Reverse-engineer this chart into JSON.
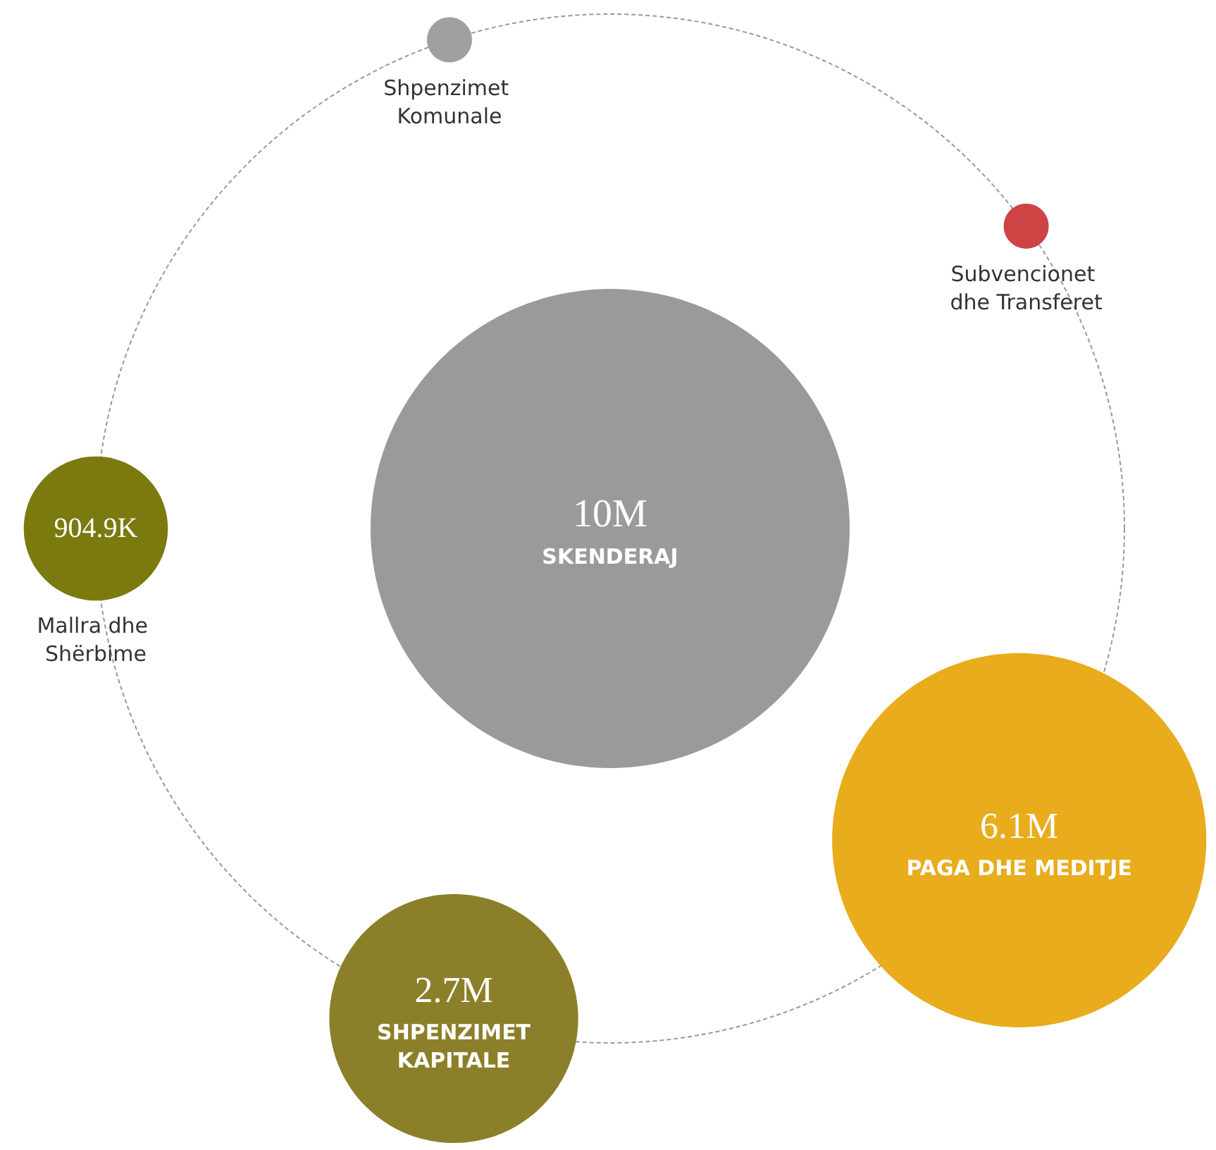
{
  "chart_data": {
    "type": "other",
    "categories": [
      "SKENDERAJ",
      "PAGA DHE MEDITJE",
      "SHPENZIMET KAPITALE",
      "Mallra dhe Shërbime",
      "Shpenzimet Komunale",
      "Subvencionet dhe Transferet"
    ],
    "values": [
      10000000,
      6100000,
      2700000,
      904900,
      null,
      null
    ],
    "value_labels": [
      "10M",
      "6.1M",
      "2.7M",
      "904.9K",
      null,
      null
    ],
    "colors": [
      "#9a9a9a",
      "#e8ac1c",
      "#8c7f2a",
      "#7a7a0e",
      "#a0a0a0",
      "#cc4444"
    ]
  }
}
